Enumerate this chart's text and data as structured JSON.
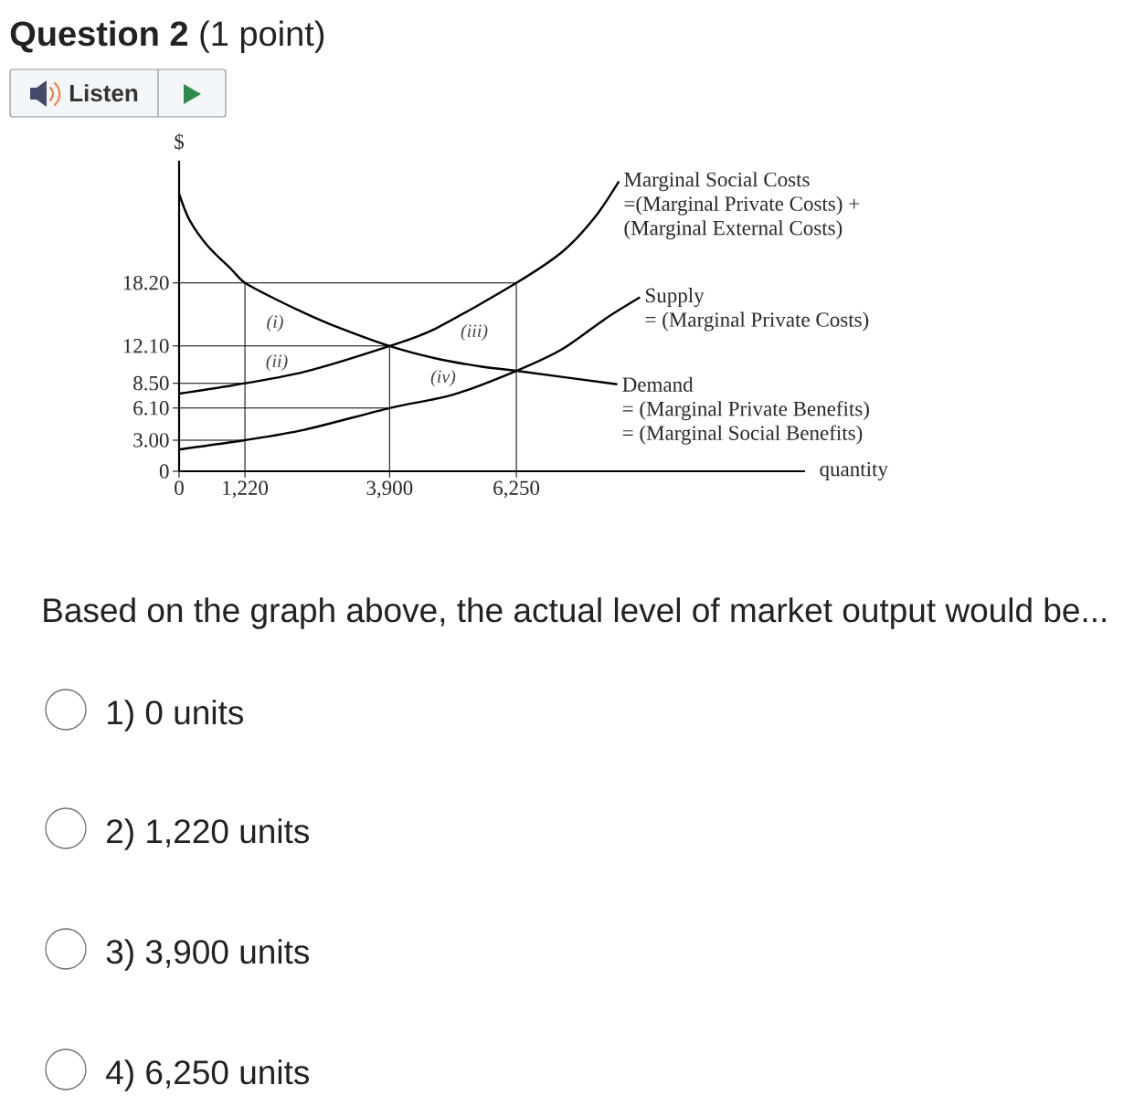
{
  "chart_data": {
    "type": "line",
    "title": "**Question 2** (1 point)",
    "xlabel": "quantity",
    "ylabel": "$",
    "xlim": [
      0,
      11600
    ],
    "ylim": [
      0,
      30
    ],
    "xticks": [
      0,
      {
        "value": 1220,
        "label": "1,220"
      },
      {
        "value": 3900,
        "label": "3,900"
      },
      {
        "value": 6250,
        "label": "6,250"
      }
    ],
    "yticks": [
      0,
      {
        "value": 3,
        "label": "3.00"
      },
      {
        "value": 6.1,
        "label": "6.10"
      },
      {
        "value": 8.5,
        "label": "8.50"
      },
      {
        "value": 12.1,
        "label": "12.10"
      },
      {
        "value": 18.2,
        "label": "18.20"
      }
    ],
    "series": [
      {
        "name": "Marginal Social Costs",
        "color": "#000000",
        "x": [
          0,
          1220,
          2320,
          3900,
          4760,
          6250,
          7100,
          7700,
          8150
        ],
        "values": [
          7.5,
          8.5,
          9.6,
          12.1,
          13.8,
          18.2,
          21.2,
          24.5,
          28
        ]
      },
      {
        "name": "Supply",
        "color": "#000000",
        "x": [
          0,
          1220,
          2320,
          3900,
          5080,
          6250,
          7100,
          7890,
          8540
        ],
        "values": [
          2.1,
          3,
          4,
          6.1,
          7.4,
          9.7,
          11.8,
          14.7,
          16.8
        ]
      },
      {
        "name": "Demand",
        "color": "#000000",
        "x": [
          0,
          190,
          525,
          970,
          1220,
          1760,
          2320,
          2900,
          3900,
          4760,
          5610,
          6250,
          8120
        ],
        "values": [
          26.8,
          24.3,
          21.8,
          19.5,
          18.2,
          16.7,
          15.3,
          14,
          12.1,
          10.9,
          10.1,
          9.7,
          8.4
        ]
      },
      {
        "color": "#000000",
        "x": [
          0,
          6250,
          6250
        ],
        "values": [
          18.2,
          18.2,
          0
        ]
      },
      {
        "color": "#000000",
        "x": [
          1220,
          1220
        ],
        "values": [
          18.2,
          0
        ]
      },
      {
        "color": "#000000",
        "x": [
          0,
          3900,
          3900
        ],
        "values": [
          12.1,
          12.1,
          0
        ]
      },
      {
        "color": "#000000",
        "x": [
          0,
          1220
        ],
        "values": [
          8.5,
          8.5
        ]
      },
      {
        "color": "#000000",
        "x": [
          0,
          3900
        ],
        "values": [
          6.1,
          6.1
        ]
      },
      {
        "color": "#000000",
        "x": [
          0,
          1220
        ],
        "values": [
          3,
          3
        ]
      }
    ],
    "annotations": [
      "=(Marginal Private Costs) +",
      "(Marginal External Costs)",
      "= (Marginal Private Costs)",
      "= (Marginal Private Benefits)",
      "= (Marginal Social Benefits)",
      "(i)",
      "(ii)",
      "(iii)",
      "(iv)",
      "Listen",
      "Based on the graph above, the actual level of market output would be...",
      "1) 0 units",
      "2) 1,220 units",
      "3) 3,900 units",
      "4) 6,250 units"
    ]
  }
}
